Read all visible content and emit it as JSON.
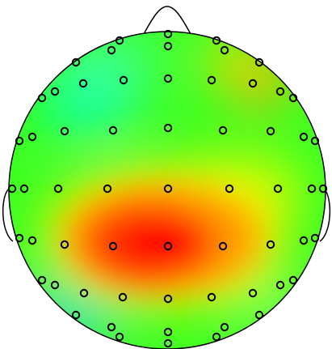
{
  "figure": {
    "colors": {
      "background": "#ffffff",
      "outline": "#000000",
      "electrode_fill": "none",
      "colormap": [
        "#00c8ff",
        "#00ff66",
        "#b4ff00",
        "#ffff00",
        "#ff9900",
        "#ff0000"
      ]
    },
    "electrode_marker": "circle",
    "electrode_count": 64
  }
}
